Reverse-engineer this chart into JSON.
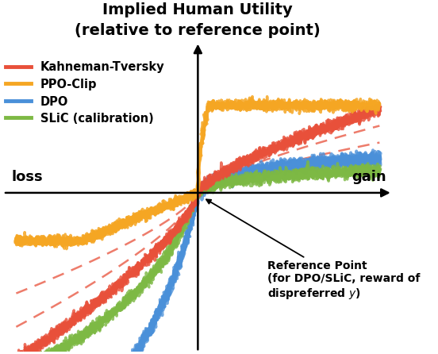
{
  "title_line1": "Implied Human Utility",
  "title_line2": "(relative to reference point)",
  "xlabel_left": "loss",
  "xlabel_right": "gain",
  "legend": [
    {
      "label": "Kahneman-Tversky",
      "color": "#E8503A"
    },
    {
      "label": "PPO-Clip",
      "color": "#F5A623"
    },
    {
      "label": "DPO",
      "color": "#4A90D9"
    },
    {
      "label": "SLiC (calibration)",
      "color": "#7DB944"
    }
  ],
  "kt_color": "#E8503A",
  "ppo_color": "#F5A623",
  "dpo_color": "#4A90D9",
  "slic_color": "#7DB944",
  "dash_color": "#E8503A"
}
